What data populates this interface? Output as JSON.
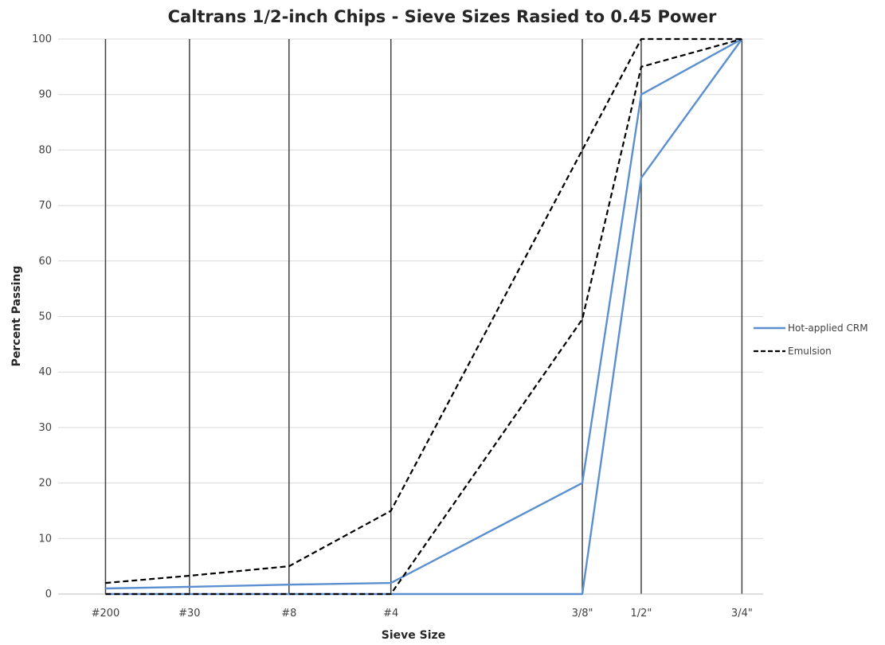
{
  "chart_data": {
    "type": "line",
    "title": "Caltrans 1/2-inch Chips - Sieve Sizes Rasied to 0.45 Power",
    "xlabel": "Sieve Size",
    "ylabel": "Percent Passing",
    "x_scale": "sieve size raised to 0.45 power",
    "categories": [
      "#200",
      "#30",
      "#8",
      "#4",
      "3/8\"",
      "1/2\"",
      "3/4\""
    ],
    "x_positions": [
      0.0134,
      0.156,
      0.325,
      0.498,
      0.823,
      0.923,
      1.094
    ],
    "ylim": [
      0,
      100
    ],
    "yticks": [
      0,
      10,
      20,
      30,
      40,
      50,
      60,
      70,
      80,
      90,
      100
    ],
    "grid": {
      "horizontal": true,
      "vertical_at_sieves": true
    },
    "legend_position": "right",
    "series": [
      {
        "name": "Hot-applied CRM",
        "style": "solid",
        "color": "#5b8fd0",
        "points": [
          [
            0.0134,
            1
          ],
          [
            0.156,
            1.3
          ],
          [
            0.325,
            1.7
          ],
          [
            0.498,
            2
          ],
          [
            0.823,
            20
          ],
          [
            0.923,
            90
          ],
          [
            1.094,
            100
          ]
        ]
      },
      {
        "name": "",
        "style": "solid",
        "color": "#5b8fd0",
        "points": [
          [
            0.0134,
            0
          ],
          [
            0.156,
            0
          ],
          [
            0.325,
            0
          ],
          [
            0.498,
            0
          ],
          [
            0.823,
            0
          ],
          [
            0.923,
            75
          ],
          [
            1.094,
            100
          ]
        ]
      },
      {
        "name": "Emulsion",
        "style": "dashed",
        "color": "#000000",
        "points": [
          [
            0.0134,
            2
          ],
          [
            0.156,
            3.3
          ],
          [
            0.325,
            5
          ],
          [
            0.498,
            15
          ],
          [
            0.823,
            80
          ],
          [
            0.923,
            100
          ],
          [
            1.094,
            100
          ]
        ]
      },
      {
        "name": "",
        "style": "dashed",
        "color": "#000000",
        "points": [
          [
            0.0134,
            0
          ],
          [
            0.156,
            0
          ],
          [
            0.325,
            0
          ],
          [
            0.498,
            0
          ],
          [
            0.823,
            49.5
          ],
          [
            0.923,
            95
          ],
          [
            1.094,
            100
          ]
        ]
      }
    ]
  }
}
